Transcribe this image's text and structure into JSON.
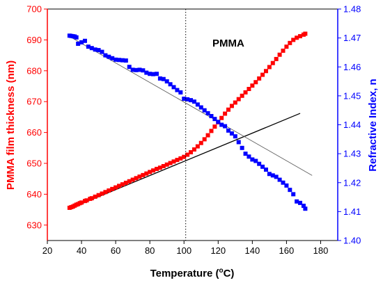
{
  "chart_data": {
    "type": "scatter",
    "title": "",
    "annotation": "PMMA",
    "xlabel": "Temperature (",
    "xlabel_sup": "o",
    "xlabel_tail": "C)",
    "ylabel_left": "PMMA film thickness (nm)",
    "ylabel_right": "Refractive Index, n",
    "xlim": [
      20,
      190
    ],
    "ylim_left": [
      625,
      700
    ],
    "ylim_right": [
      1.4,
      1.48
    ],
    "x_ticks": [
      20,
      40,
      60,
      80,
      100,
      120,
      140,
      160,
      180
    ],
    "y_left_ticks": [
      630,
      640,
      650,
      660,
      670,
      680,
      690,
      700
    ],
    "y_right_ticks": [
      1.4,
      1.41,
      1.42,
      1.43,
      1.44,
      1.45,
      1.46,
      1.47,
      1.48
    ],
    "x_tick_labels": [
      "20",
      "40",
      "60",
      "80",
      "100",
      "120",
      "140",
      "160",
      "180"
    ],
    "y_left_tick_labels": [
      "630",
      "640",
      "650",
      "660",
      "670",
      "680",
      "690",
      "700"
    ],
    "y_right_tick_labels": [
      "1.40",
      "1.41",
      "1.42",
      "1.43",
      "1.44",
      "1.45",
      "1.46",
      "1.47",
      "1.48"
    ],
    "vline_x": 101,
    "colors": {
      "left": "#ff0000",
      "right": "#0000ff",
      "fit_thickness": "#000000",
      "fit_index": "#606060"
    },
    "series": [
      {
        "axis": "left",
        "color": "#ff0000",
        "x": [
          33,
          34,
          35,
          36,
          37,
          38,
          39,
          40,
          42,
          43,
          45,
          46,
          48,
          50,
          52,
          54,
          56,
          58,
          60,
          62,
          64,
          66,
          68,
          70,
          72,
          74,
          76,
          78,
          80,
          82,
          84,
          86,
          88,
          90,
          92,
          94,
          96,
          98,
          100,
          102,
          104,
          106,
          108,
          110,
          112,
          114,
          116,
          118,
          120,
          122,
          124,
          126,
          128,
          130,
          132,
          134,
          136,
          138,
          140,
          142,
          144,
          146,
          148,
          150,
          152,
          154,
          156,
          158,
          160,
          162,
          164,
          166,
          168,
          170,
          171
        ],
        "y": [
          635.6,
          635.8,
          636.0,
          636.3,
          636.6,
          636.8,
          637.1,
          637.3,
          637.8,
          638.0,
          638.5,
          638.7,
          639.2,
          639.7,
          640.2,
          640.7,
          641.2,
          641.7,
          642.2,
          642.7,
          643.2,
          643.7,
          644.2,
          644.7,
          645.2,
          645.7,
          646.2,
          646.7,
          647.2,
          647.7,
          648.2,
          648.6,
          649.1,
          649.6,
          650.1,
          650.6,
          651.1,
          651.6,
          652.1,
          652.8,
          653.6,
          654.5,
          655.5,
          656.6,
          657.8,
          659.1,
          660.5,
          661.9,
          663.3,
          664.7,
          666.1,
          667.4,
          668.6,
          669.7,
          670.8,
          671.9,
          673.0,
          674.1,
          675.2,
          676.3,
          677.5,
          678.7,
          679.9,
          681.2,
          682.5,
          683.8,
          685.2,
          686.5,
          687.8,
          689.0,
          690.0,
          690.7,
          691.2,
          691.7,
          692.0
        ]
      },
      {
        "axis": "right",
        "color": "#0000ff",
        "x": [
          33,
          34,
          35,
          36,
          37,
          38,
          40,
          42,
          44,
          46,
          48,
          50,
          52,
          54,
          56,
          58,
          60,
          62,
          64,
          66,
          68,
          70,
          72,
          74,
          76,
          78,
          80,
          82,
          84,
          86,
          88,
          90,
          92,
          94,
          96,
          98,
          100,
          102,
          104,
          106,
          108,
          110,
          112,
          114,
          116,
          118,
          120,
          122,
          124,
          126,
          128,
          130,
          132,
          134,
          136,
          138,
          140,
          142,
          144,
          146,
          148,
          150,
          152,
          154,
          156,
          158,
          160,
          162,
          164,
          166,
          168,
          170,
          171
        ],
        "y": [
          1.4708,
          1.4707,
          1.4706,
          1.4705,
          1.4702,
          1.468,
          1.4685,
          1.469,
          1.467,
          1.4665,
          1.466,
          1.4658,
          1.4652,
          1.464,
          1.4635,
          1.463,
          1.4625,
          1.4624,
          1.4623,
          1.4622,
          1.46,
          1.459,
          1.4589,
          1.459,
          1.4588,
          1.458,
          1.4576,
          1.4575,
          1.4576,
          1.456,
          1.4558,
          1.455,
          1.454,
          1.453,
          1.452,
          1.4512,
          1.449,
          1.4488,
          1.4485,
          1.448,
          1.447,
          1.446,
          1.445,
          1.444,
          1.443,
          1.442,
          1.441,
          1.44,
          1.4395,
          1.438,
          1.437,
          1.436,
          1.434,
          1.432,
          1.43,
          1.429,
          1.428,
          1.4275,
          1.4265,
          1.4255,
          1.4245,
          1.423,
          1.4225,
          1.422,
          1.421,
          1.42,
          1.419,
          1.4175,
          1.416,
          1.4135,
          1.413,
          1.412,
          1.411
        ]
      }
    ],
    "fit_lines": [
      {
        "axis": "left",
        "color": "#000000",
        "x": [
          33,
          168
        ],
        "y": [
          635.3,
          666.2
        ]
      },
      {
        "axis": "right",
        "color": "#606060",
        "x": [
          33,
          175
        ],
        "y": [
          1.4705,
          1.4225
        ]
      }
    ],
    "grid": false
  }
}
